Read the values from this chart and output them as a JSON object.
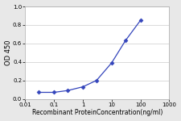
{
  "x": [
    0.03,
    0.1,
    0.3,
    1.0,
    3.0,
    10.0,
    30.0,
    100.0
  ],
  "y": [
    0.07,
    0.07,
    0.09,
    0.13,
    0.2,
    0.39,
    0.63,
    0.85
  ],
  "line_color": "#3344bb",
  "marker": "D",
  "marker_size": 2.5,
  "marker_color": "#3344bb",
  "xlabel": "Recombinant ProteinConcentration(ng/ml)",
  "ylabel": "OD 450",
  "xlim": [
    0.01,
    1000
  ],
  "ylim": [
    0,
    1.0
  ],
  "yticks": [
    0,
    0.2,
    0.4,
    0.6,
    0.8,
    1
  ],
  "xtick_labels": [
    "0.01",
    "0.1",
    "1",
    "10",
    "100",
    "1000"
  ],
  "xtick_vals": [
    0.01,
    0.1,
    1,
    10,
    100,
    1000
  ],
  "plot_bg_color": "#ffffff",
  "fig_bg_color": "#e8e8e8",
  "grid_color": "#cccccc",
  "spine_color": "#aaaaaa",
  "xlabel_fontsize": 5.5,
  "ylabel_fontsize": 6,
  "tick_fontsize": 5.0,
  "linewidth": 0.9
}
